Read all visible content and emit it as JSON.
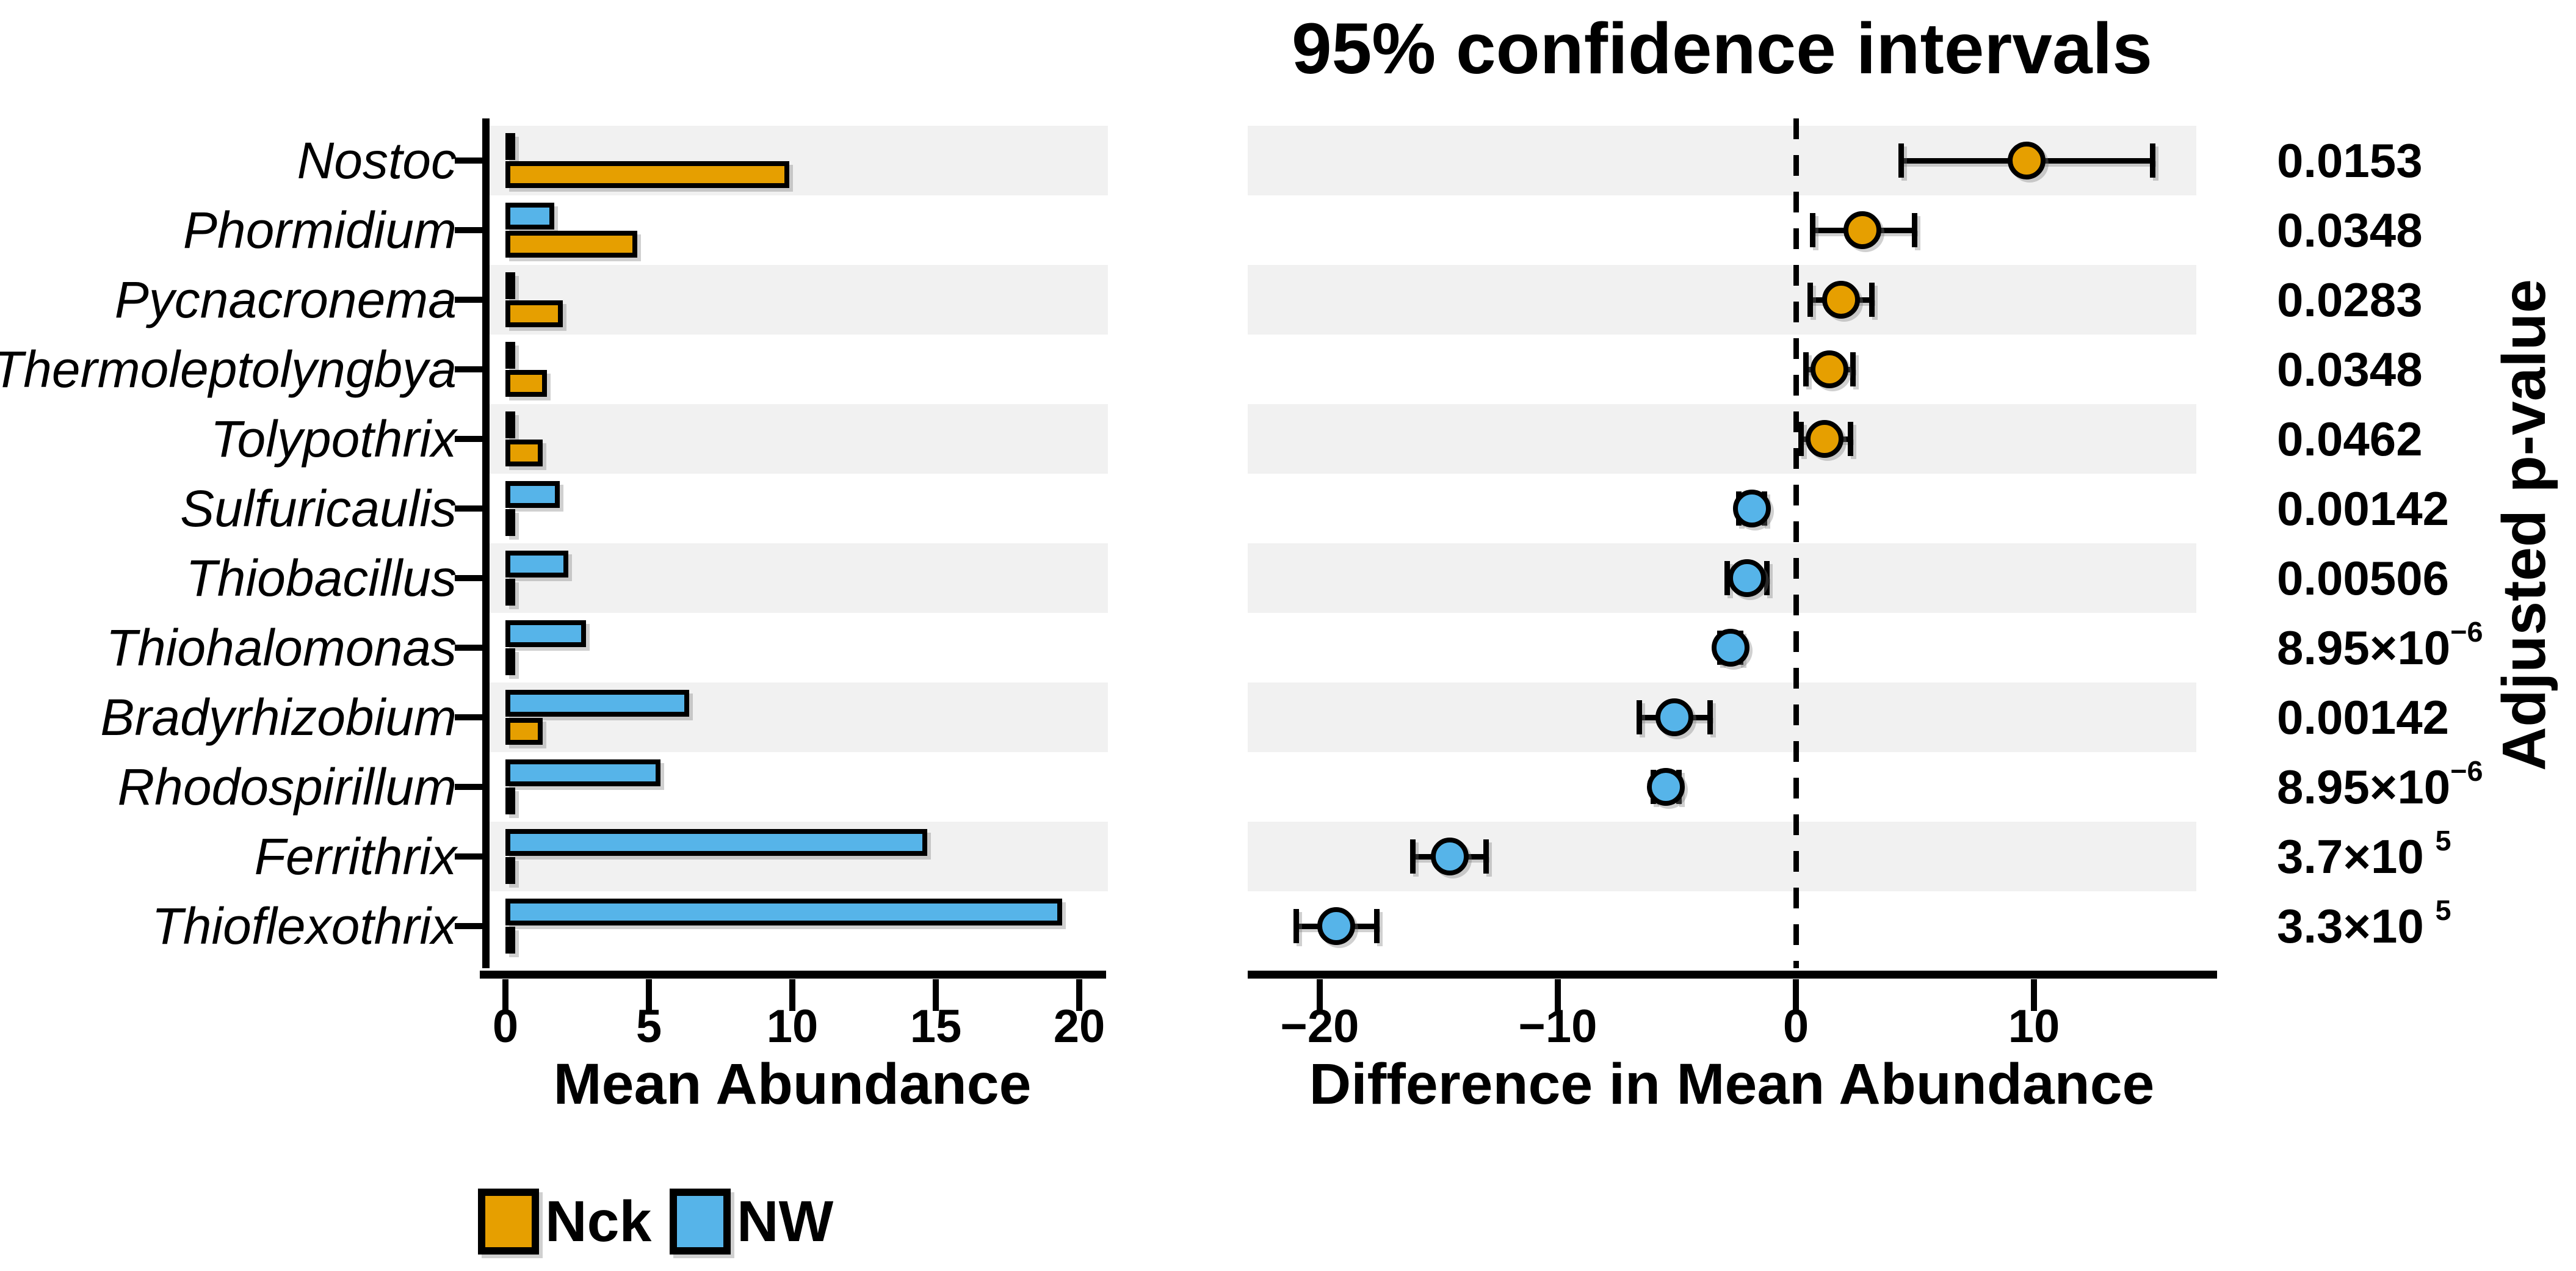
{
  "title": "95% confidence intervals",
  "legend": [
    {
      "label": "Nck",
      "color": "#E69F00"
    },
    {
      "label": "NW",
      "color": "#56B4E9"
    }
  ],
  "right_axis_label": "Adjusted p-value",
  "colors": {
    "nck_orange": "#E69F00",
    "nw_blue": "#56B4E9",
    "row_band_gray": "#F1F1F1",
    "line_black": "#000000"
  },
  "chart_data": {
    "type": "bar",
    "title": "95% confidence intervals",
    "grid": false,
    "legend_position": "bottom-left",
    "groups": [
      {
        "name": "Nck",
        "color": "#E69F00"
      },
      {
        "name": "NW",
        "color": "#56B4E9"
      }
    ],
    "left_panel": {
      "xlabel": "Mean Abundance",
      "xlim": [
        -0.8,
        21.0
      ],
      "xticks": [
        {
          "v": 0,
          "label": "0"
        },
        {
          "v": 5,
          "label": "5"
        },
        {
          "v": 10,
          "label": "10"
        },
        {
          "v": 15,
          "label": "15"
        },
        {
          "v": 20,
          "label": "20"
        }
      ]
    },
    "right_panel": {
      "xlabel": "Difference in Mean Abundance",
      "xlim": [
        -23.0,
        16.8
      ],
      "zero_line": 0,
      "xticks": [
        {
          "v": -20,
          "label": "−20"
        },
        {
          "v": -10,
          "label": "−10"
        },
        {
          "v": 0,
          "label": "0"
        },
        {
          "v": 10,
          "label": "10"
        }
      ]
    },
    "rows": [
      {
        "taxon": "Nostoc",
        "nck": 9.9,
        "nw": 0.2,
        "diff": 9.7,
        "ci": [
          4.4,
          15.0
        ],
        "higher_in": "Nck",
        "p": "0.0153"
      },
      {
        "taxon": "Phormidium",
        "nck": 4.6,
        "nw": 1.7,
        "diff": 2.8,
        "ci": [
          0.7,
          5.0
        ],
        "higher_in": "Nck",
        "p": "0.0348"
      },
      {
        "taxon": "Pycnacronema",
        "nck": 2.0,
        "nw": 0.1,
        "diff": 1.9,
        "ci": [
          0.6,
          3.2
        ],
        "higher_in": "Nck",
        "p": "0.0283"
      },
      {
        "taxon": "Thermoleptolyngbya",
        "nck": 1.45,
        "nw": 0.1,
        "diff": 1.4,
        "ci": [
          0.4,
          2.4
        ],
        "higher_in": "Nck",
        "p": "0.0348"
      },
      {
        "taxon": "Tolypothrix",
        "nck": 1.3,
        "nw": 0.1,
        "diff": 1.2,
        "ci": [
          0.2,
          2.3
        ],
        "higher_in": "Nck",
        "p": "0.0462"
      },
      {
        "taxon": "Sulfuricaulis",
        "nck": 0.1,
        "nw": 1.9,
        "diff": -1.85,
        "ci": [
          -2.4,
          -1.3
        ],
        "higher_in": "NW",
        "p": "0.00142"
      },
      {
        "taxon": "Thiobacillus",
        "nck": 0.1,
        "nw": 2.2,
        "diff": -2.05,
        "ci": [
          -2.9,
          -1.2
        ],
        "higher_in": "NW",
        "p": "0.00506"
      },
      {
        "taxon": "Thiohalomonas",
        "nck": 0.1,
        "nw": 2.8,
        "diff": -2.75,
        "ci": [
          -3.2,
          -2.3
        ],
        "higher_in": "NW",
        "p_base": "8.95×10",
        "p_exp": "−6",
        "p_gap": false
      },
      {
        "taxon": "Bradyrhizobium",
        "nck": 1.3,
        "nw": 6.4,
        "diff": -5.1,
        "ci": [
          -6.6,
          -3.6
        ],
        "higher_in": "NW",
        "p": "0.00142"
      },
      {
        "taxon": "Rhodospirillum",
        "nck": 0.1,
        "nw": 5.4,
        "diff": -5.45,
        "ci": [
          -6.0,
          -4.9
        ],
        "higher_in": "NW",
        "p_base": "8.95×10",
        "p_exp": "−6",
        "p_gap": false
      },
      {
        "taxon": "Ferrithrix",
        "nck": 0.1,
        "nw": 14.7,
        "diff": -14.55,
        "ci": [
          -16.1,
          -13.0
        ],
        "higher_in": "NW",
        "p_base": "3.7×10",
        "p_exp": "5",
        "p_gap": true
      },
      {
        "taxon": "Thioflexothrix",
        "nck": 0.1,
        "nw": 19.4,
        "diff": -19.3,
        "ci": [
          -21.0,
          -17.6
        ],
        "higher_in": "NW",
        "p_base": "3.3×10",
        "p_exp": "5",
        "p_gap": true
      }
    ]
  }
}
